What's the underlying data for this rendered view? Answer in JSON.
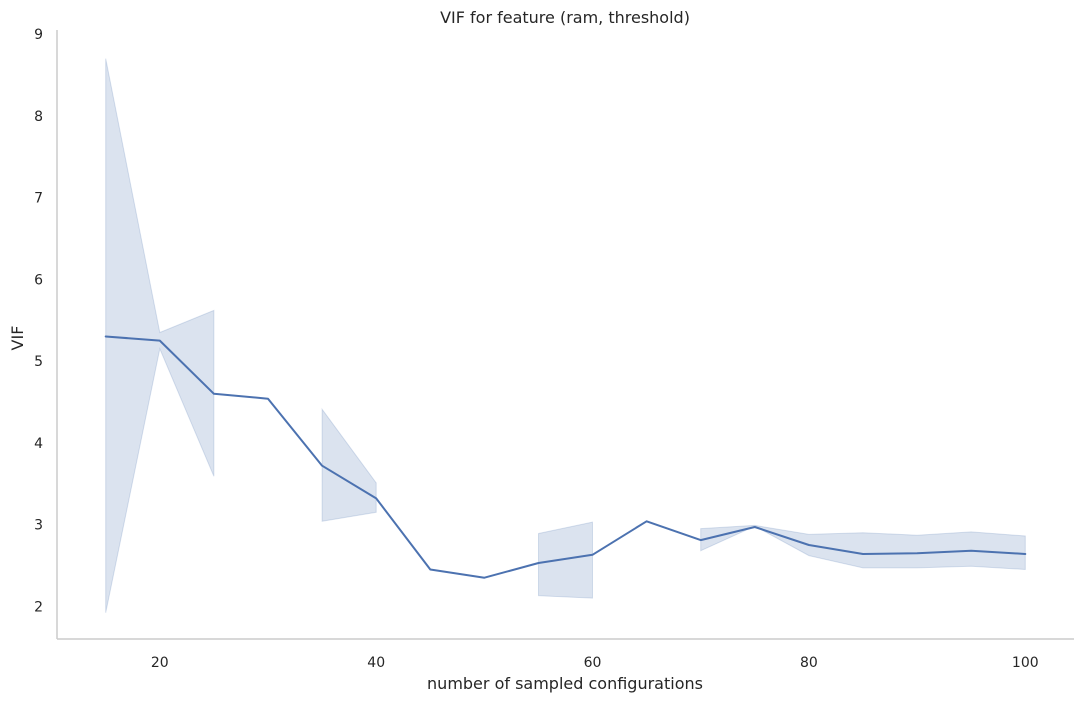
{
  "chart_data": {
    "type": "line",
    "title": "VIF for feature (ram, threshold)",
    "xlabel": "number of sampled configurations",
    "ylabel": "VIF",
    "xlim": [
      10.5,
      104.5
    ],
    "ylim": [
      1.6,
      9.05
    ],
    "xticks": [
      20,
      40,
      60,
      80,
      100
    ],
    "yticks": [
      2,
      3,
      4,
      5,
      6,
      7,
      8,
      9
    ],
    "grid": false,
    "legend": "none",
    "colors": {
      "line": "#4c72b0",
      "band": "#4c72b0",
      "spine": "#cccccc",
      "text": "#262626"
    },
    "series": [
      {
        "x": [
          15,
          20,
          25,
          30,
          35,
          40,
          45,
          50,
          55,
          60,
          65,
          70,
          75,
          80,
          85,
          90,
          95,
          100
        ],
        "values": [
          5.3,
          5.25,
          4.6,
          4.54,
          3.72,
          3.32,
          2.45,
          2.35,
          2.53,
          2.63,
          3.04,
          2.81,
          2.97,
          2.75,
          2.64,
          2.65,
          2.68,
          2.64
        ]
      }
    ],
    "confidence_band": [
      {
        "x": [
          15,
          20,
          25
        ],
        "lower": [
          1.92,
          5.15,
          3.59
        ],
        "upper": [
          8.7,
          5.35,
          5.62
        ]
      },
      {
        "x": [
          35,
          40
        ],
        "lower": [
          3.04,
          3.15
        ],
        "upper": [
          4.41,
          3.51
        ]
      },
      {
        "x": [
          55,
          60
        ],
        "lower": [
          2.13,
          2.1
        ],
        "upper": [
          2.89,
          3.03
        ]
      },
      {
        "x": [
          70,
          75,
          80,
          85,
          90,
          95,
          100
        ],
        "lower": [
          2.68,
          2.98,
          2.62,
          2.47,
          2.47,
          2.49,
          2.45
        ],
        "upper": [
          2.95,
          2.99,
          2.88,
          2.9,
          2.87,
          2.91,
          2.86
        ]
      }
    ]
  }
}
